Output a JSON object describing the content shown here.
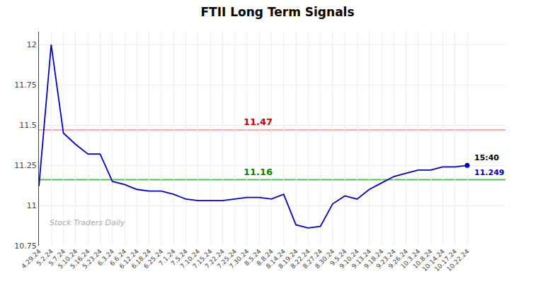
{
  "chart_data": {
    "type": "line",
    "title": "FTII Long Term Signals",
    "categories": [
      "4.29.24",
      "5.2.24",
      "5.7.24",
      "5.10.24",
      "5.16.24",
      "5.23.24",
      "6.3.24",
      "6.6.24",
      "6.12.24",
      "6.18.24",
      "6.25.24",
      "7.1.24",
      "7.5.24",
      "7.10.24",
      "7.15.24",
      "7.22.24",
      "7.25.24",
      "7.30.24",
      "8.5.24",
      "8.8.24",
      "8.14.24",
      "8.19.24",
      "8.22.24",
      "8.27.24",
      "8.30.24",
      "9.5.24",
      "9.10.24",
      "9.13.24",
      "9.18.24",
      "9.23.24",
      "9.26.24",
      "10.3.24",
      "10.8.24",
      "10.14.24",
      "10.17.24",
      "10.22.24"
    ],
    "values": [
      11.12,
      12.0,
      11.45,
      11.38,
      11.32,
      11.32,
      11.15,
      11.13,
      11.1,
      11.09,
      11.09,
      11.07,
      11.04,
      11.03,
      11.03,
      11.03,
      11.04,
      11.05,
      11.05,
      11.04,
      11.07,
      10.88,
      10.86,
      10.87,
      11.01,
      11.06,
      11.04,
      11.1,
      11.14,
      11.18,
      11.2,
      11.22,
      11.22,
      11.24,
      11.24,
      11.249
    ],
    "color": "#0000cc",
    "ylim": [
      10.75,
      12.08
    ],
    "yticks": [
      10.75,
      11,
      11.25,
      11.5,
      11.75,
      12
    ],
    "grid": true,
    "reference_lines": [
      {
        "value": 11.47,
        "color": "#ffaaaa",
        "label": "11.47",
        "label_color": "#cc0000"
      },
      {
        "value": 11.16,
        "color": "#44cc44",
        "label": "11.16",
        "label_color": "#008800"
      }
    ],
    "annotations": [
      {
        "text": "15:40",
        "x": "10.22.24",
        "y": 11.249,
        "color": "#000000"
      },
      {
        "text": "11.249",
        "x": "10.22.24",
        "y": 11.249,
        "color": "#0000cc"
      }
    ],
    "watermark": "Stock Traders Daily"
  }
}
